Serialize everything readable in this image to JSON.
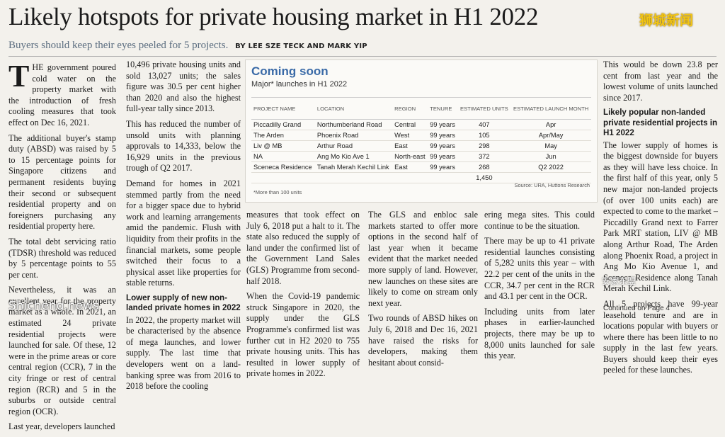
{
  "headline": "Likely hotspots for private housing market in H1 2022",
  "brand": "狮城新闻",
  "subline": {
    "text": "Buyers should keep their eyes peeled for 5 projects.",
    "byline": "BY LEE SZE TECK AND MARK YIP"
  },
  "col1": {
    "dropcap": "T",
    "p1": "HE government poured cold water on the property market with the introduction of fresh cooling measures that took effect on Dec 16, 2021.",
    "p2": "The additional buyer's stamp duty (ABSD) was raised by 5 to 15 percentage points for Singapore citizens and permanent residents buying their second or subsequent residential property and on foreigners purchasing any residential property here.",
    "p3": "The total debt servicing ratio (TDSR) threshold was reduced by 5 percentage points to 55 per cent.",
    "p4": "Nevertheless, it was an excellent year for the property market as a whole. In 2021, an estimated 24 private residential projects were launched for sale. Of these, 12 were in the prime areas or core central region (CCR), 7 in the city fringe or rest of central region (RCR) and 5 in the suburbs or outside central region (OCR).",
    "p5": "Last year, developers launched"
  },
  "col2": {
    "p1": "10,496 private housing units and sold 13,027 units; the sales figure was 30.5 per cent higher than 2020 and also the highest full-year tally since 2013.",
    "p2": "This has reduced the number of unsold units with planning approvals to 14,333, below the 16,929 units in the previous trough of Q2 2017.",
    "p3": "Demand for homes in 2021 stemmed partly from the need for a bigger space due to hybrid work and learning arrangements amid the pandemic. Flush with liquidity from their profits in the financial markets, some people switched their focus to a physical asset like properties for stable returns.",
    "subhead": "Lower supply of new non-landed private homes in 2022",
    "p4": "In 2022, the property market will be characterised by the absence of mega launches, and lower supply. The last time that developers went on a land-banking spree was from 2016 to 2018 before the cooling"
  },
  "col3": {
    "p1": "measures that took effect on July 6, 2018 put a halt to it. The state also reduced the supply of land under the confirmed list of the Government Land Sales (GLS) Programme from second-half 2018.",
    "p2": "When the Covid-19 pandemic struck Singapore in 2020, the supply under the GLS Programme's confirmed list was further cut in H2 2020 to 755 private housing units. This has resulted in lower supply of private homes in 2022."
  },
  "col4": {
    "p1": "The GLS and enbloc sale markets started to offer more options in the second half of last year when it became evident that the market needed more supply of land. However, new launches on these sites are likely to come on stream only next year.",
    "p2": "Two rounds of ABSD hikes on July 6, 2018 and Dec 16, 2021 have raised the risks for developers, making them hesitant about consid-"
  },
  "col5": {
    "p1": "ering mega sites. This could continue to be the situation.",
    "p2": "There may be up to 41 private residential launches consisting of 5,282 units this year – with 22.2 per cent of the units in the CCR, 34.7 per cent in the RCR and 43.1 per cent in the OCR.",
    "p3": "Including units from later phases in earlier-launched projects, there may be up to 8,000 units launched for sale this year."
  },
  "col6": {
    "p1": "This would be down 23.8 per cent from last year and the lowest volume of units launched since 2017.",
    "subhead": "Likely popular non-landed private residential projects in H1 2022",
    "p2": "The lower supply of homes is the biggest downside for buyers as they will have less choice. In the first half of this year, only 5 new major non-landed projects (of over 100 units each) are expected to come to the market – Piccadilly Grand next to Farrer Park MRT station, LIV @ MB along Arthur Road, The Arden along Phoenix Road, a project in Ang Mo Kio Avenue 1, and Sceneca Residence along Tanah Merah Kechil Link.",
    "p3": "All 5 projects have 99-year leasehold tenure and are in locations popular with buyers or where there has been little to no supply in the last few years. Buyers should keep their eyes peeled for these launches."
  },
  "continued": "Continued on Page 4",
  "watermark_left": "Shicheng.news",
  "watermark_right": "安家东盟",
  "box": {
    "title": "Coming soon",
    "subtitle": "Major* launches in H1 2022",
    "headers": [
      "PROJECT NAME",
      "LOCATION",
      "REGION",
      "TENURE",
      "ESTIMATED UNITS",
      "ESTIMATED LAUNCH MONTH"
    ],
    "rows": [
      [
        "Piccadilly Grand",
        "Northumberland Road",
        "Central",
        "99 years",
        "407",
        "Apr"
      ],
      [
        "The Arden",
        "Phoenix Road",
        "West",
        "99 years",
        "105",
        "Apr/May"
      ],
      [
        "Liv @ MB",
        "Arthur Road",
        "East",
        "99 years",
        "298",
        "May"
      ],
      [
        "NA",
        "Ang Mo Kio Ave 1",
        "North-east",
        "99 years",
        "372",
        "Jun"
      ],
      [
        "Sceneca Residence",
        "Tanah Merah Kechil Link",
        "East",
        "99 years",
        "268",
        "Q2 2022"
      ]
    ],
    "total": "1,450",
    "note": "*More than 100 units",
    "source": "Source: URA, Huttons Research"
  }
}
